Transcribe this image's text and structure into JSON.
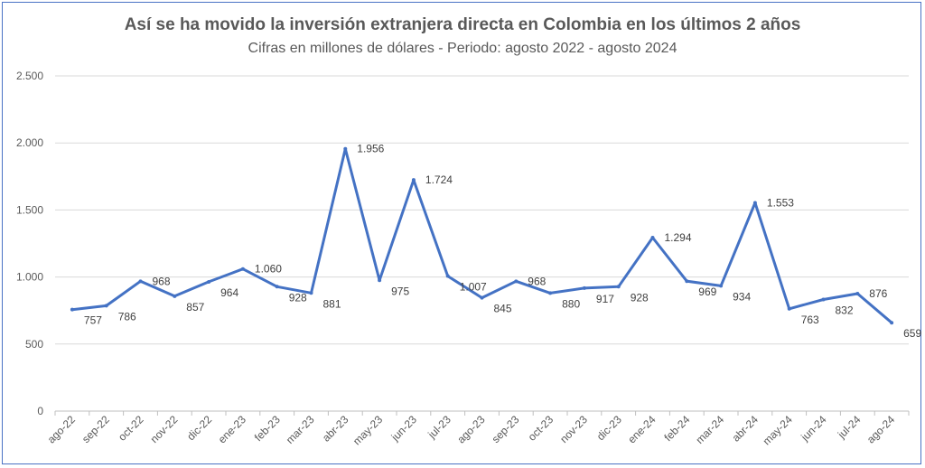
{
  "chart_data": {
    "type": "line",
    "title": "Así se ha movido la inversión extranjera directa en Colombia en los últimos 2 años",
    "subtitle": "Cifras en millones de dólares - Periodo: agosto 2022 - agosto 2024",
    "xlabel": "",
    "ylabel": "",
    "ylim": [
      0,
      2500
    ],
    "yticks": [
      0,
      500,
      1000,
      1500,
      2000,
      2500
    ],
    "ytick_labels": [
      "0",
      "500",
      "1.000",
      "1.500",
      "2.000",
      "2.500"
    ],
    "grid": true,
    "line_color": "#4472c4",
    "categories": [
      "ago-22",
      "sep-22",
      "oct-22",
      "nov-22",
      "dic-22",
      "ene-23",
      "feb-23",
      "mar-23",
      "abr-23",
      "may-23",
      "jun-23",
      "jul-23",
      "ago-23",
      "sep-23",
      "oct-23",
      "nov-23",
      "dic-23",
      "ene-24",
      "feb-24",
      "mar-24",
      "abr-24",
      "may-24",
      "jun-24",
      "jul-24",
      "ago-24"
    ],
    "series": [
      {
        "values": [
          757,
          786,
          968,
          857,
          964,
          1060,
          928,
          881,
          1956,
          975,
          1724,
          1007,
          845,
          968,
          880,
          917,
          928,
          1294,
          969,
          934,
          1553,
          763,
          832,
          876,
          659
        ],
        "labels": [
          "757",
          "786",
          "968",
          "857",
          "964",
          "1.060",
          "928",
          "881",
          "1.956",
          "975",
          "1.724",
          "1.007",
          "845",
          "968",
          "880",
          "917",
          "928",
          "1.294",
          "969",
          "934",
          "1.553",
          "763",
          "832",
          "876",
          "659"
        ]
      }
    ]
  }
}
